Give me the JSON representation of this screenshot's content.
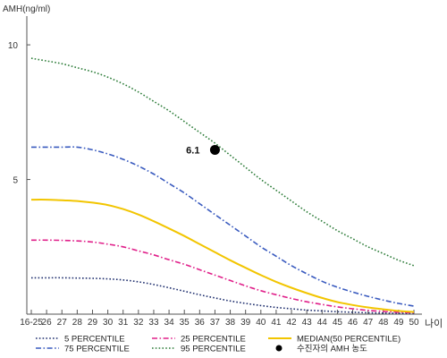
{
  "chart_data": {
    "type": "line",
    "y_axis_label": "AMH(ng/ml)",
    "x_axis_label": "나이",
    "ylim": [
      0,
      11
    ],
    "y_ticks": [
      5,
      10
    ],
    "categories": [
      "16-25",
      "26",
      "27",
      "28",
      "29",
      "30",
      "31",
      "32",
      "33",
      "34",
      "35",
      "36",
      "37",
      "38",
      "39",
      "40",
      "41",
      "42",
      "43",
      "44",
      "45",
      "46",
      "47",
      "48",
      "49",
      "50"
    ],
    "series": [
      {
        "name": "5 PERCENTILE",
        "color": "#1f2f6e",
        "style": "dotted",
        "values": [
          1.35,
          1.35,
          1.35,
          1.34,
          1.33,
          1.31,
          1.27,
          1.2,
          1.1,
          0.98,
          0.85,
          0.72,
          0.6,
          0.49,
          0.4,
          0.32,
          0.25,
          0.2,
          0.15,
          0.12,
          0.09,
          0.07,
          0.05,
          0.04,
          0.03,
          0.02
        ]
      },
      {
        "name": "75 PERCENTILE",
        "color": "#3a5bbf",
        "style": "dashdot",
        "values": [
          6.2,
          6.2,
          6.2,
          6.2,
          6.1,
          5.95,
          5.75,
          5.5,
          5.2,
          4.85,
          4.5,
          4.1,
          3.7,
          3.3,
          2.9,
          2.5,
          2.15,
          1.8,
          1.5,
          1.22,
          1.0,
          0.82,
          0.66,
          0.52,
          0.4,
          0.3
        ]
      },
      {
        "name": "25 PERCENTILE",
        "color": "#e0208a",
        "style": "dashdot",
        "values": [
          2.75,
          2.75,
          2.74,
          2.72,
          2.68,
          2.6,
          2.5,
          2.35,
          2.2,
          2.02,
          1.85,
          1.65,
          1.45,
          1.25,
          1.05,
          0.87,
          0.72,
          0.58,
          0.46,
          0.36,
          0.27,
          0.2,
          0.14,
          0.1,
          0.07,
          0.05
        ]
      },
      {
        "name": "95 PERCENTILE",
        "color": "#2e7d3a",
        "style": "dotted",
        "values": [
          9.5,
          9.4,
          9.3,
          9.15,
          9.0,
          8.8,
          8.55,
          8.25,
          7.9,
          7.55,
          7.15,
          6.75,
          6.35,
          5.9,
          5.45,
          5.0,
          4.6,
          4.2,
          3.8,
          3.45,
          3.1,
          2.8,
          2.5,
          2.25,
          2.0,
          1.8
        ]
      },
      {
        "name": "MEDIAN(50 PERCENTILE)",
        "color": "#f2c500",
        "style": "solid",
        "values": [
          4.25,
          4.25,
          4.23,
          4.2,
          4.14,
          4.05,
          3.9,
          3.7,
          3.45,
          3.18,
          2.9,
          2.6,
          2.3,
          2.0,
          1.72,
          1.45,
          1.2,
          0.98,
          0.78,
          0.6,
          0.45,
          0.34,
          0.25,
          0.18,
          0.12,
          0.08
        ]
      }
    ],
    "point": {
      "label": "6.1",
      "x": "37",
      "y": 6.1,
      "color": "#000000"
    },
    "point_legend": "수진자의 AMH 농도",
    "legend": [
      {
        "name": "5 PERCENTILE",
        "color": "#1f2f6e",
        "style": "dotted"
      },
      {
        "name": "25 PERCENTILE",
        "color": "#e0208a",
        "style": "dashdot"
      },
      {
        "name": "MEDIAN(50 PERCENTILE)",
        "color": "#f2c500",
        "style": "solid"
      },
      {
        "name": "75 PERCENTILE",
        "color": "#3a5bbf",
        "style": "dashdot"
      },
      {
        "name": "95 PERCENTILE",
        "color": "#2e7d3a",
        "style": "dotted"
      },
      {
        "name": "수진자의 AMH 농도",
        "color": "#000000",
        "style": "marker"
      }
    ],
    "legend_position": "bottom",
    "grid": false
  }
}
